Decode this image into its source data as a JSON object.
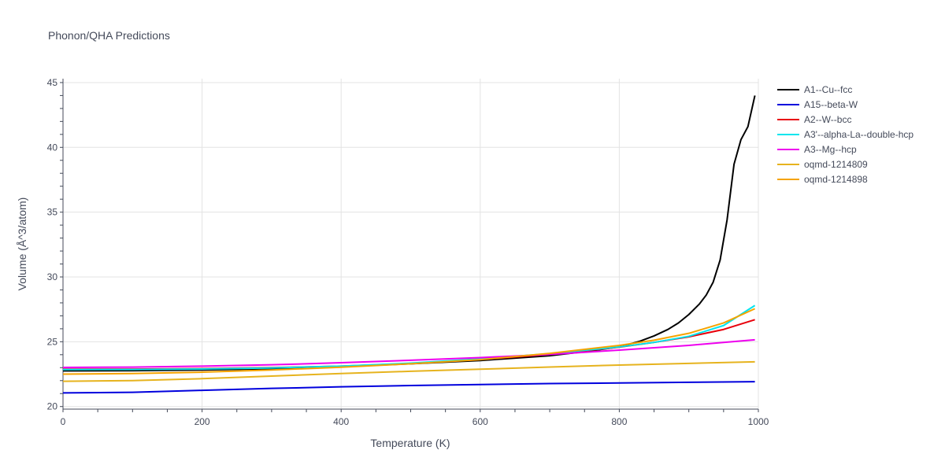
{
  "chart_data": {
    "type": "line",
    "title": "Phonon/QHA Predictions",
    "xlabel": "Temperature (K)",
    "ylabel": "Volume (Å^3/atom)",
    "xlim": [
      0,
      1000
    ],
    "ylim": [
      19.8,
      45.3
    ],
    "x_ticks": [
      0,
      200,
      400,
      600,
      800,
      1000
    ],
    "y_ticks": [
      20,
      25,
      30,
      35,
      40,
      45
    ],
    "grid": true,
    "legend_position": "right",
    "series": [
      {
        "name": "A1--Cu--fcc",
        "color": "#000000",
        "points": [
          [
            0,
            22.75
          ],
          [
            100,
            22.77
          ],
          [
            200,
            22.82
          ],
          [
            300,
            22.92
          ],
          [
            400,
            23.08
          ],
          [
            500,
            23.3
          ],
          [
            600,
            23.55
          ],
          [
            700,
            23.92
          ],
          [
            760,
            24.3
          ],
          [
            800,
            24.6
          ],
          [
            830,
            25.05
          ],
          [
            850,
            25.45
          ],
          [
            870,
            25.95
          ],
          [
            885,
            26.45
          ],
          [
            900,
            27.1
          ],
          [
            915,
            27.9
          ],
          [
            925,
            28.6
          ],
          [
            935,
            29.6
          ],
          [
            945,
            31.3
          ],
          [
            955,
            34.4
          ],
          [
            965,
            38.7
          ],
          [
            975,
            40.6
          ],
          [
            985,
            41.6
          ],
          [
            995,
            44.0
          ]
        ]
      },
      {
        "name": "A15--beta-W",
        "color": "#0000dd",
        "points": [
          [
            0,
            21.05
          ],
          [
            100,
            21.1
          ],
          [
            200,
            21.25
          ],
          [
            300,
            21.4
          ],
          [
            400,
            21.52
          ],
          [
            500,
            21.62
          ],
          [
            600,
            21.7
          ],
          [
            700,
            21.77
          ],
          [
            800,
            21.82
          ],
          [
            900,
            21.87
          ],
          [
            995,
            21.92
          ]
        ]
      },
      {
        "name": "A2--W--bcc",
        "color": "#e8000b",
        "points": [
          [
            0,
            22.88
          ],
          [
            100,
            22.89
          ],
          [
            200,
            22.93
          ],
          [
            300,
            23.0
          ],
          [
            400,
            23.12
          ],
          [
            500,
            23.32
          ],
          [
            600,
            23.63
          ],
          [
            700,
            24.02
          ],
          [
            800,
            24.58
          ],
          [
            850,
            24.95
          ],
          [
            900,
            25.38
          ],
          [
            950,
            25.95
          ],
          [
            995,
            26.7
          ]
        ]
      },
      {
        "name": "A3'--alpha-La--double-hcp",
        "color": "#00e5ee",
        "points": [
          [
            0,
            22.85
          ],
          [
            100,
            22.86
          ],
          [
            200,
            22.9
          ],
          [
            300,
            22.98
          ],
          [
            400,
            23.12
          ],
          [
            500,
            23.35
          ],
          [
            600,
            23.68
          ],
          [
            700,
            24.08
          ],
          [
            800,
            24.6
          ],
          [
            850,
            24.95
          ],
          [
            900,
            25.42
          ],
          [
            950,
            26.25
          ],
          [
            995,
            27.8
          ]
        ]
      },
      {
        "name": "A3--Mg--hcp",
        "color": "#ee00ee",
        "points": [
          [
            0,
            23.02
          ],
          [
            100,
            23.04
          ],
          [
            200,
            23.12
          ],
          [
            300,
            23.22
          ],
          [
            400,
            23.38
          ],
          [
            500,
            23.57
          ],
          [
            600,
            23.78
          ],
          [
            700,
            24.02
          ],
          [
            800,
            24.35
          ],
          [
            900,
            24.72
          ],
          [
            995,
            25.15
          ]
        ]
      },
      {
        "name": "oqmd-1214809",
        "color": "#e6b31e",
        "points": [
          [
            0,
            21.95
          ],
          [
            100,
            22.0
          ],
          [
            200,
            22.15
          ],
          [
            300,
            22.35
          ],
          [
            400,
            22.55
          ],
          [
            500,
            22.72
          ],
          [
            600,
            22.88
          ],
          [
            700,
            23.05
          ],
          [
            800,
            23.2
          ],
          [
            900,
            23.33
          ],
          [
            995,
            23.45
          ]
        ]
      },
      {
        "name": "oqmd-1214898",
        "color": "#f5a300",
        "points": [
          [
            0,
            22.5
          ],
          [
            100,
            22.55
          ],
          [
            200,
            22.65
          ],
          [
            300,
            22.82
          ],
          [
            400,
            23.03
          ],
          [
            500,
            23.3
          ],
          [
            600,
            23.62
          ],
          [
            700,
            24.1
          ],
          [
            800,
            24.72
          ],
          [
            850,
            25.12
          ],
          [
            900,
            25.65
          ],
          [
            950,
            26.45
          ],
          [
            995,
            27.55
          ]
        ]
      }
    ]
  }
}
